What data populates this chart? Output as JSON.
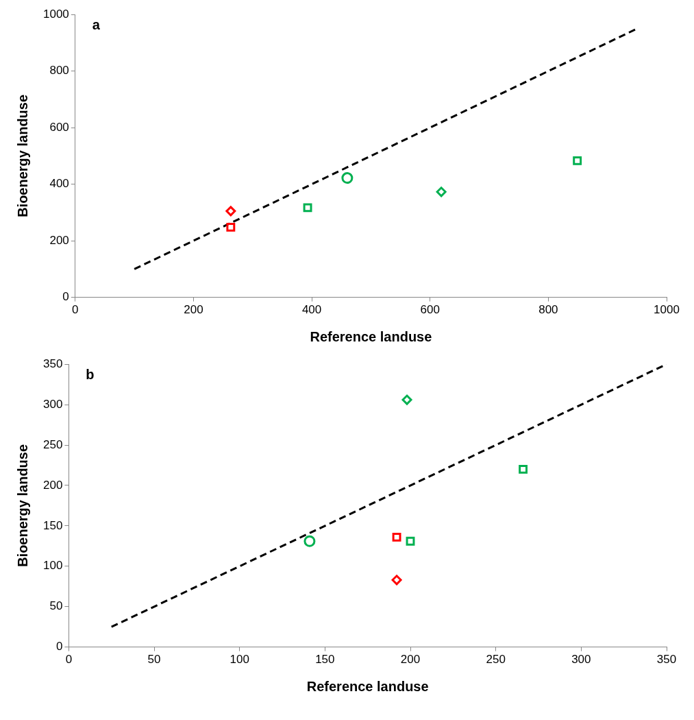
{
  "chart_data": [
    {
      "type": "scatter",
      "xlabel": "Reference landuse",
      "ylabel": "Bioenergy landuse",
      "annotations": [
        "a"
      ],
      "xlim": [
        0,
        1000
      ],
      "ylim": [
        0,
        1000
      ],
      "xticks": [
        0,
        200,
        400,
        600,
        800,
        1000
      ],
      "yticks": [
        0,
        200,
        400,
        600,
        800,
        1000
      ],
      "grid": false,
      "legend": false,
      "series": [
        {
          "color": "#ff0000",
          "marker": "square",
          "x": [
            263
          ],
          "values": [
            248
          ]
        },
        {
          "color": "#ff0000",
          "marker": "diamond",
          "x": [
            263
          ],
          "values": [
            305
          ]
        },
        {
          "color": "#00b050",
          "marker": "square",
          "x": [
            393,
            849
          ],
          "values": [
            317,
            483
          ]
        },
        {
          "color": "#00b050",
          "marker": "circle",
          "x": [
            460
          ],
          "values": [
            422
          ]
        },
        {
          "color": "#00b050",
          "marker": "diamond",
          "x": [
            619
          ],
          "values": [
            373
          ]
        },
        {
          "type": "line",
          "color": "#000000",
          "marker": "none",
          "line_style": "dashed",
          "x": [
            100,
            950
          ],
          "values": [
            100,
            950
          ]
        }
      ]
    },
    {
      "type": "scatter",
      "xlabel": "Reference landuse",
      "ylabel": "Bioenergy landuse",
      "annotations": [
        "b"
      ],
      "xlim": [
        0,
        350
      ],
      "ylim": [
        0,
        350
      ],
      "xticks": [
        0,
        50,
        100,
        150,
        200,
        250,
        300,
        350
      ],
      "yticks": [
        0,
        50,
        100,
        150,
        200,
        250,
        300,
        350
      ],
      "grid": false,
      "legend": false,
      "series": [
        {
          "color": "#ff0000",
          "marker": "square",
          "x": [
            192
          ],
          "values": [
            136
          ]
        },
        {
          "color": "#ff0000",
          "marker": "diamond",
          "x": [
            192
          ],
          "values": [
            83
          ]
        },
        {
          "color": "#00b050",
          "marker": "square",
          "x": [
            200,
            266
          ],
          "values": [
            131,
            220
          ]
        },
        {
          "color": "#00b050",
          "marker": "circle",
          "x": [
            141
          ],
          "values": [
            131
          ]
        },
        {
          "color": "#00b050",
          "marker": "diamond",
          "x": [
            198
          ],
          "values": [
            306
          ]
        },
        {
          "type": "line",
          "color": "#000000",
          "marker": "none",
          "line_style": "dashed",
          "x": [
            25,
            350
          ],
          "values": [
            25,
            350
          ]
        }
      ]
    }
  ]
}
